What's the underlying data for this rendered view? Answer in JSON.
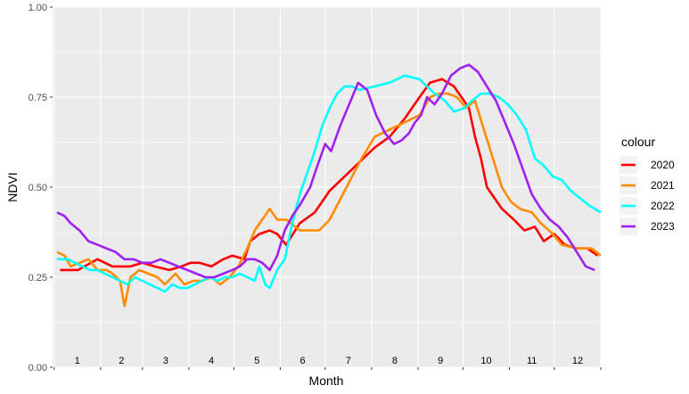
{
  "chart_data": {
    "type": "line",
    "title": "",
    "xlabel": "Month",
    "ylabel": "NDVI",
    "xlim": [
      0,
      366
    ],
    "ylim": [
      0,
      1
    ],
    "y_ticks": [
      "0.00",
      "0.25",
      "0.50",
      "0.75",
      "1.00"
    ],
    "y_tick_values": [
      0,
      0.25,
      0.5,
      0.75,
      1
    ],
    "month_labels": [
      "1",
      "2",
      "3",
      "4",
      "5",
      "6",
      "7",
      "8",
      "9",
      "10",
      "11",
      "12"
    ],
    "month_label_y": 0.02,
    "month_starts": [
      1,
      32,
      60,
      91,
      121,
      152,
      182,
      213,
      244,
      274,
      305,
      335,
      366
    ],
    "grid": true,
    "panel_background": "#ebebeb",
    "legend": {
      "title": "colour",
      "placement": "right",
      "entries": [
        "2020",
        "2021",
        "2022",
        "2023"
      ]
    },
    "series": [
      {
        "name": "2020",
        "color": "#ff0000",
        "x": [
          5,
          17,
          30,
          40,
          52,
          60,
          68,
          78,
          86,
          92,
          98,
          106,
          114,
          120,
          128,
          132,
          138,
          145,
          150,
          156,
          165,
          175,
          185,
          195,
          205,
          215,
          225,
          235,
          245,
          252,
          260,
          268,
          273,
          278,
          282,
          286,
          290,
          300,
          308,
          315,
          322,
          328,
          335,
          342,
          350,
          357,
          364
        ],
        "y": [
          0.27,
          0.27,
          0.3,
          0.28,
          0.28,
          0.29,
          0.28,
          0.27,
          0.28,
          0.29,
          0.29,
          0.28,
          0.3,
          0.31,
          0.3,
          0.35,
          0.37,
          0.38,
          0.37,
          0.34,
          0.4,
          0.43,
          0.49,
          0.53,
          0.57,
          0.61,
          0.64,
          0.69,
          0.75,
          0.79,
          0.8,
          0.78,
          0.75,
          0.72,
          0.64,
          0.58,
          0.5,
          0.44,
          0.41,
          0.38,
          0.39,
          0.35,
          0.37,
          0.34,
          0.33,
          0.33,
          0.31
        ]
      },
      {
        "name": "2021",
        "color": "#ff8c00",
        "x": [
          3,
          8,
          12,
          18,
          24,
          30,
          36,
          40,
          45,
          48,
          52,
          58,
          64,
          70,
          75,
          82,
          88,
          94,
          100,
          106,
          112,
          118,
          124,
          130,
          135,
          140,
          145,
          150,
          156,
          165,
          172,
          178,
          185,
          195,
          205,
          215,
          225,
          235,
          245,
          252,
          258,
          264,
          270,
          276,
          282,
          288,
          294,
          300,
          306,
          312,
          320,
          326,
          334,
          340,
          350,
          360,
          366
        ],
        "y": [
          0.32,
          0.31,
          0.28,
          0.29,
          0.3,
          0.27,
          0.27,
          0.26,
          0.24,
          0.17,
          0.25,
          0.27,
          0.26,
          0.25,
          0.23,
          0.26,
          0.23,
          0.24,
          0.24,
          0.25,
          0.23,
          0.25,
          0.28,
          0.33,
          0.38,
          0.41,
          0.44,
          0.41,
          0.41,
          0.38,
          0.38,
          0.38,
          0.41,
          0.49,
          0.57,
          0.64,
          0.66,
          0.68,
          0.7,
          0.75,
          0.76,
          0.76,
          0.75,
          0.72,
          0.74,
          0.66,
          0.58,
          0.5,
          0.46,
          0.44,
          0.43,
          0.4,
          0.37,
          0.34,
          0.33,
          0.33,
          0.31
        ]
      },
      {
        "name": "2022",
        "color": "#00ffff",
        "x": [
          3,
          10,
          15,
          20,
          25,
          30,
          35,
          40,
          45,
          50,
          55,
          60,
          65,
          70,
          75,
          80,
          85,
          90,
          95,
          100,
          105,
          110,
          115,
          120,
          125,
          130,
          135,
          138,
          142,
          145,
          150,
          155,
          160,
          165,
          170,
          175,
          180,
          185,
          190,
          195,
          200,
          205,
          215,
          225,
          235,
          245,
          255,
          262,
          268,
          275,
          280,
          286,
          292,
          298,
          304,
          310,
          316,
          322,
          328,
          334,
          340,
          346,
          352,
          358,
          366
        ],
        "y": [
          0.3,
          0.3,
          0.29,
          0.28,
          0.27,
          0.27,
          0.26,
          0.25,
          0.24,
          0.23,
          0.25,
          0.24,
          0.23,
          0.22,
          0.21,
          0.23,
          0.22,
          0.22,
          0.23,
          0.24,
          0.25,
          0.24,
          0.25,
          0.25,
          0.26,
          0.25,
          0.24,
          0.28,
          0.23,
          0.22,
          0.27,
          0.3,
          0.4,
          0.48,
          0.54,
          0.6,
          0.67,
          0.72,
          0.76,
          0.78,
          0.78,
          0.77,
          0.78,
          0.79,
          0.81,
          0.8,
          0.76,
          0.74,
          0.71,
          0.72,
          0.74,
          0.76,
          0.76,
          0.75,
          0.73,
          0.7,
          0.66,
          0.58,
          0.56,
          0.53,
          0.52,
          0.49,
          0.47,
          0.45,
          0.43
        ]
      },
      {
        "name": "2023",
        "color": "#a020f0",
        "x": [
          3,
          8,
          12,
          18,
          24,
          30,
          36,
          42,
          48,
          54,
          60,
          66,
          72,
          78,
          84,
          90,
          96,
          102,
          108,
          114,
          120,
          125,
          130,
          135,
          140,
          145,
          150,
          155,
          160,
          165,
          172,
          176,
          182,
          186,
          192,
          196,
          200,
          204,
          210,
          216,
          222,
          228,
          233,
          238,
          242,
          246,
          250,
          255,
          260,
          266,
          272,
          278,
          284,
          290,
          296,
          302,
          308,
          314,
          320,
          326,
          332,
          338,
          344,
          350,
          356,
          362
        ],
        "y": [
          0.43,
          0.42,
          0.4,
          0.38,
          0.35,
          0.34,
          0.33,
          0.32,
          0.3,
          0.3,
          0.29,
          0.29,
          0.3,
          0.29,
          0.28,
          0.27,
          0.26,
          0.25,
          0.25,
          0.26,
          0.27,
          0.28,
          0.3,
          0.3,
          0.29,
          0.27,
          0.31,
          0.38,
          0.42,
          0.45,
          0.5,
          0.55,
          0.62,
          0.6,
          0.67,
          0.71,
          0.75,
          0.79,
          0.77,
          0.7,
          0.65,
          0.62,
          0.63,
          0.65,
          0.68,
          0.7,
          0.75,
          0.73,
          0.76,
          0.81,
          0.83,
          0.84,
          0.82,
          0.78,
          0.74,
          0.68,
          0.62,
          0.55,
          0.48,
          0.44,
          0.41,
          0.39,
          0.36,
          0.32,
          0.28,
          0.27
        ]
      }
    ]
  }
}
